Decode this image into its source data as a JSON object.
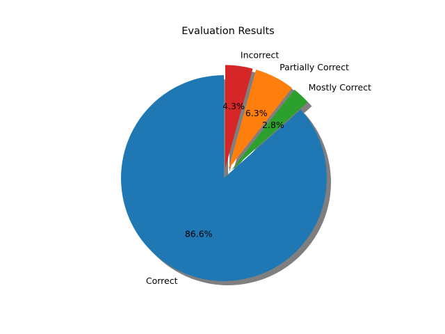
{
  "chart_data": {
    "type": "pie",
    "title": "Evaluation Results",
    "start_angle_deg": 90,
    "direction": "counterclockwise",
    "shadow": true,
    "legend": "none",
    "slices": [
      {
        "label": "Correct",
        "value": 86.6,
        "pct_label": "86.6%",
        "color": "#1f77b4",
        "exploded": false
      },
      {
        "label": "Mostly Correct",
        "value": 2.8,
        "pct_label": "2.8%",
        "color": "#2ca02c",
        "exploded": true
      },
      {
        "label": "Partially Correct",
        "value": 6.3,
        "pct_label": "6.3%",
        "color": "#ff7f0e",
        "exploded": true
      },
      {
        "label": "Incorrect",
        "value": 4.3,
        "pct_label": "4.3%",
        "color": "#d62728",
        "exploded": true
      }
    ]
  }
}
